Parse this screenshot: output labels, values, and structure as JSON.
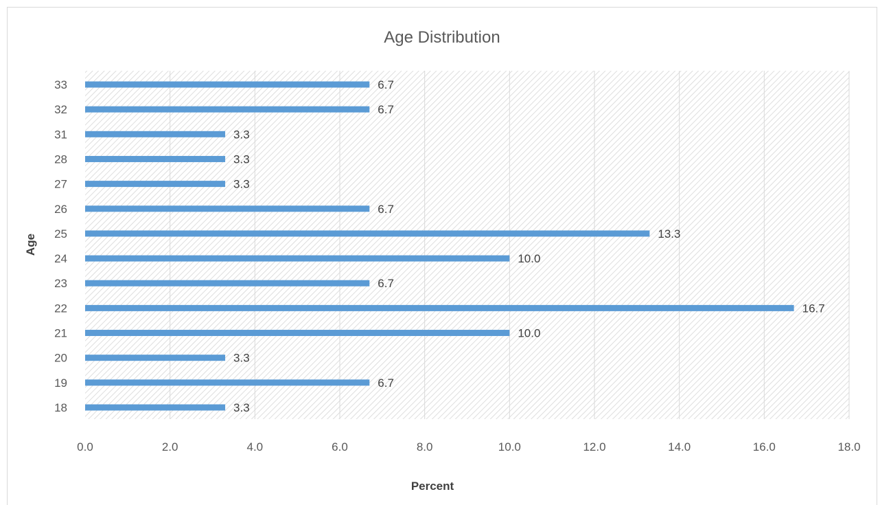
{
  "chart_data": {
    "type": "bar",
    "orientation": "horizontal",
    "title": "Age Distribution",
    "xlabel": "Percent",
    "ylabel": "Age",
    "categories": [
      "18",
      "19",
      "20",
      "21",
      "22",
      "23",
      "24",
      "25",
      "26",
      "27",
      "28",
      "31",
      "32",
      "33"
    ],
    "values": [
      3.3,
      6.7,
      3.3,
      10.0,
      16.7,
      6.7,
      10.0,
      13.3,
      6.7,
      3.3,
      3.3,
      3.3,
      6.7,
      6.7
    ],
    "data_labels": [
      "3.3",
      "6.7",
      "3.3",
      "10.0",
      "16.7",
      "6.7",
      "10.0",
      "13.3",
      "6.7",
      "3.3",
      "3.3",
      "3.3",
      "6.7",
      "6.7"
    ],
    "xlim": [
      0,
      18
    ],
    "x_ticks": [
      "0.0",
      "2.0",
      "4.0",
      "6.0",
      "8.0",
      "10.0",
      "12.0",
      "14.0",
      "16.0",
      "18.0"
    ],
    "grid": "vertical",
    "plot_background": "hatched",
    "bar_color": "#5b9bd5",
    "legend": "none"
  }
}
